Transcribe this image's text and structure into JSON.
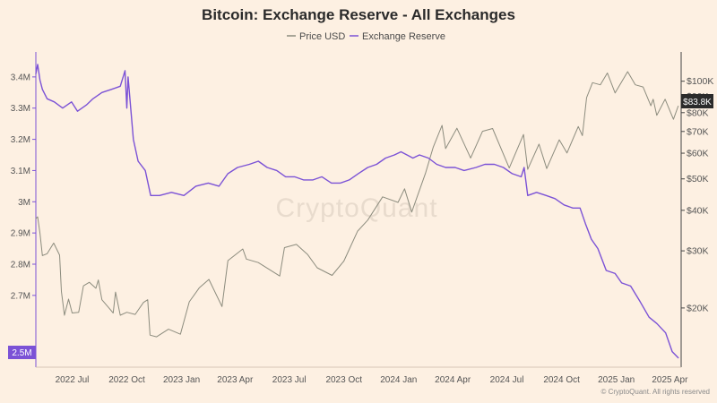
{
  "chart_data": {
    "type": "line",
    "title": "Bitcoin: Exchange Reserve - All Exchanges",
    "watermark": "CryptoQuant",
    "footer": "© CryptoQuant. All rights reserved",
    "legend": {
      "placement": "top-center"
    },
    "grid": false,
    "x_axis": {
      "type": "date",
      "range": [
        "2022-05-01",
        "2025-04-20"
      ],
      "ticks": [
        {
          "date": "2022-07-01",
          "label": "2022 Jul"
        },
        {
          "date": "2022-10-01",
          "label": "2022 Oct"
        },
        {
          "date": "2023-01-01",
          "label": "2023 Jan"
        },
        {
          "date": "2023-04-01",
          "label": "2023 Apr"
        },
        {
          "date": "2023-07-01",
          "label": "2023 Jul"
        },
        {
          "date": "2023-10-01",
          "label": "2023 Oct"
        },
        {
          "date": "2024-01-01",
          "label": "2024 Jan"
        },
        {
          "date": "2024-04-01",
          "label": "2024 Apr"
        },
        {
          "date": "2024-07-01",
          "label": "2024 Jul"
        },
        {
          "date": "2024-10-01",
          "label": "2024 Oct"
        },
        {
          "date": "2025-01-01",
          "label": "2025 Jan"
        },
        {
          "date": "2025-04-01",
          "label": "2025 Apr"
        }
      ]
    },
    "y_left": {
      "range": [
        2.47,
        3.48
      ],
      "ticks": [
        {
          "v": 3.4,
          "label": "3.4M"
        },
        {
          "v": 3.3,
          "label": "3.3M"
        },
        {
          "v": 3.2,
          "label": "3.2M"
        },
        {
          "v": 3.1,
          "label": "3.1M"
        },
        {
          "v": 3.0,
          "label": "3M"
        },
        {
          "v": 2.9,
          "label": "2.9M"
        },
        {
          "v": 2.8,
          "label": "2.8M"
        },
        {
          "v": 2.7,
          "label": "2.7M"
        }
      ],
      "current_label": "2.5M",
      "current_value": 2.5
    },
    "y_right": {
      "scale": "log",
      "range": [
        14000,
        120000
      ],
      "ticks": [
        {
          "v": 100000,
          "label": "$100K"
        },
        {
          "v": 90000,
          "label": "$90K"
        },
        {
          "v": 80000,
          "label": "$80K"
        },
        {
          "v": 70000,
          "label": "$70K"
        },
        {
          "v": 60000,
          "label": "$60K"
        },
        {
          "v": 50000,
          "label": "$50K"
        },
        {
          "v": 40000,
          "label": "$40K"
        },
        {
          "v": 30000,
          "label": "$30K"
        },
        {
          "v": 20000,
          "label": "$20K"
        }
      ],
      "current_label": "$83.8K",
      "current_value": 83800
    },
    "series": [
      {
        "name": "Price USD",
        "axis": "right",
        "color": "#8c8c7e",
        "points": [
          [
            "2022-05-01",
            37700
          ],
          [
            "2022-05-04",
            38200
          ],
          [
            "2022-05-08",
            34000
          ],
          [
            "2022-05-12",
            29000
          ],
          [
            "2022-05-20",
            29400
          ],
          [
            "2022-05-31",
            31700
          ],
          [
            "2022-06-10",
            29100
          ],
          [
            "2022-06-13",
            22500
          ],
          [
            "2022-06-18",
            19000
          ],
          [
            "2022-06-25",
            21300
          ],
          [
            "2022-07-01",
            19300
          ],
          [
            "2022-07-12",
            19400
          ],
          [
            "2022-07-20",
            23400
          ],
          [
            "2022-07-30",
            24000
          ],
          [
            "2022-08-10",
            23000
          ],
          [
            "2022-08-14",
            24400
          ],
          [
            "2022-08-20",
            21200
          ],
          [
            "2022-09-01",
            20000
          ],
          [
            "2022-09-08",
            19300
          ],
          [
            "2022-09-12",
            22400
          ],
          [
            "2022-09-20",
            19000
          ],
          [
            "2022-10-01",
            19400
          ],
          [
            "2022-10-15",
            19100
          ],
          [
            "2022-10-29",
            20800
          ],
          [
            "2022-11-05",
            21200
          ],
          [
            "2022-11-09",
            16500
          ],
          [
            "2022-11-20",
            16300
          ],
          [
            "2022-12-10",
            17200
          ],
          [
            "2022-12-30",
            16600
          ],
          [
            "2023-01-14",
            20900
          ],
          [
            "2023-01-31",
            23100
          ],
          [
            "2023-02-16",
            24500
          ],
          [
            "2023-03-10",
            20200
          ],
          [
            "2023-03-20",
            28000
          ],
          [
            "2023-04-14",
            30400
          ],
          [
            "2023-04-20",
            28300
          ],
          [
            "2023-05-10",
            27600
          ],
          [
            "2023-06-15",
            25100
          ],
          [
            "2023-06-23",
            30700
          ],
          [
            "2023-07-13",
            31400
          ],
          [
            "2023-08-01",
            29200
          ],
          [
            "2023-08-17",
            26600
          ],
          [
            "2023-09-11",
            25200
          ],
          [
            "2023-10-01",
            27900
          ],
          [
            "2023-10-24",
            34500
          ],
          [
            "2023-11-10",
            37300
          ],
          [
            "2023-12-05",
            44000
          ],
          [
            "2023-12-31",
            42300
          ],
          [
            "2024-01-11",
            46600
          ],
          [
            "2024-01-23",
            39500
          ],
          [
            "2024-02-15",
            52000
          ],
          [
            "2024-02-28",
            62500
          ],
          [
            "2024-03-14",
            73100
          ],
          [
            "2024-03-20",
            62000
          ],
          [
            "2024-04-08",
            71600
          ],
          [
            "2024-05-01",
            58000
          ],
          [
            "2024-05-21",
            70100
          ],
          [
            "2024-06-07",
            71500
          ],
          [
            "2024-07-05",
            54000
          ],
          [
            "2024-07-29",
            68500
          ],
          [
            "2024-08-05",
            53500
          ],
          [
            "2024-08-24",
            64000
          ],
          [
            "2024-09-06",
            53800
          ],
          [
            "2024-09-27",
            66000
          ],
          [
            "2024-10-10",
            60100
          ],
          [
            "2024-10-29",
            72500
          ],
          [
            "2024-11-05",
            68000
          ],
          [
            "2024-11-12",
            89000
          ],
          [
            "2024-11-22",
            99000
          ],
          [
            "2024-12-05",
            97500
          ],
          [
            "2024-12-17",
            106000
          ],
          [
            "2024-12-30",
            92000
          ],
          [
            "2025-01-20",
            107000
          ],
          [
            "2025-02-02",
            97500
          ],
          [
            "2025-02-15",
            96000
          ],
          [
            "2025-02-28",
            84000
          ],
          [
            "2025-03-04",
            88000
          ],
          [
            "2025-03-10",
            78500
          ],
          [
            "2025-03-24",
            88000
          ],
          [
            "2025-04-07",
            76300
          ],
          [
            "2025-04-15",
            83800
          ]
        ]
      },
      {
        "name": "Exchange Reserve",
        "axis": "left",
        "color": "#7b52d6",
        "points": [
          [
            "2022-05-01",
            3.41
          ],
          [
            "2022-05-04",
            3.44
          ],
          [
            "2022-05-08",
            3.39
          ],
          [
            "2022-05-12",
            3.36
          ],
          [
            "2022-05-20",
            3.33
          ],
          [
            "2022-06-01",
            3.32
          ],
          [
            "2022-06-15",
            3.3
          ],
          [
            "2022-06-30",
            3.32
          ],
          [
            "2022-07-10",
            3.29
          ],
          [
            "2022-07-25",
            3.31
          ],
          [
            "2022-08-05",
            3.33
          ],
          [
            "2022-08-20",
            3.35
          ],
          [
            "2022-09-05",
            3.36
          ],
          [
            "2022-09-20",
            3.37
          ],
          [
            "2022-09-28",
            3.42
          ],
          [
            "2022-10-01",
            3.3
          ],
          [
            "2022-10-03",
            3.4
          ],
          [
            "2022-10-12",
            3.2
          ],
          [
            "2022-10-20",
            3.13
          ],
          [
            "2022-11-01",
            3.1
          ],
          [
            "2022-11-10",
            3.02
          ],
          [
            "2022-11-25",
            3.02
          ],
          [
            "2022-12-15",
            3.03
          ],
          [
            "2023-01-05",
            3.02
          ],
          [
            "2023-01-25",
            3.05
          ],
          [
            "2023-02-15",
            3.06
          ],
          [
            "2023-03-05",
            3.05
          ],
          [
            "2023-03-20",
            3.09
          ],
          [
            "2023-04-05",
            3.11
          ],
          [
            "2023-04-25",
            3.12
          ],
          [
            "2023-05-10",
            3.13
          ],
          [
            "2023-05-25",
            3.11
          ],
          [
            "2023-06-10",
            3.1
          ],
          [
            "2023-06-25",
            3.08
          ],
          [
            "2023-07-10",
            3.08
          ],
          [
            "2023-07-25",
            3.07
          ],
          [
            "2023-08-10",
            3.07
          ],
          [
            "2023-08-25",
            3.08
          ],
          [
            "2023-09-10",
            3.06
          ],
          [
            "2023-09-25",
            3.06
          ],
          [
            "2023-10-10",
            3.07
          ],
          [
            "2023-10-25",
            3.09
          ],
          [
            "2023-11-10",
            3.11
          ],
          [
            "2023-11-25",
            3.12
          ],
          [
            "2023-12-10",
            3.14
          ],
          [
            "2023-12-25",
            3.15
          ],
          [
            "2024-01-05",
            3.16
          ],
          [
            "2024-01-15",
            3.15
          ],
          [
            "2024-01-25",
            3.14
          ],
          [
            "2024-02-05",
            3.15
          ],
          [
            "2024-02-20",
            3.14
          ],
          [
            "2024-03-05",
            3.12
          ],
          [
            "2024-03-20",
            3.11
          ],
          [
            "2024-04-05",
            3.11
          ],
          [
            "2024-04-20",
            3.1
          ],
          [
            "2024-05-10",
            3.11
          ],
          [
            "2024-05-25",
            3.12
          ],
          [
            "2024-06-10",
            3.12
          ],
          [
            "2024-06-25",
            3.11
          ],
          [
            "2024-07-10",
            3.09
          ],
          [
            "2024-07-25",
            3.08
          ],
          [
            "2024-07-30",
            3.11
          ],
          [
            "2024-08-05",
            3.02
          ],
          [
            "2024-08-20",
            3.03
          ],
          [
            "2024-09-05",
            3.02
          ],
          [
            "2024-09-20",
            3.01
          ],
          [
            "2024-10-05",
            2.99
          ],
          [
            "2024-10-20",
            2.98
          ],
          [
            "2024-11-01",
            2.98
          ],
          [
            "2024-11-10",
            2.93
          ],
          [
            "2024-11-20",
            2.88
          ],
          [
            "2024-12-01",
            2.85
          ],
          [
            "2024-12-15",
            2.78
          ],
          [
            "2024-12-30",
            2.77
          ],
          [
            "2025-01-10",
            2.74
          ],
          [
            "2025-01-25",
            2.73
          ],
          [
            "2025-02-10",
            2.68
          ],
          [
            "2025-02-25",
            2.63
          ],
          [
            "2025-03-10",
            2.61
          ],
          [
            "2025-03-25",
            2.58
          ],
          [
            "2025-04-05",
            2.52
          ],
          [
            "2025-04-15",
            2.5
          ]
        ]
      }
    ]
  }
}
